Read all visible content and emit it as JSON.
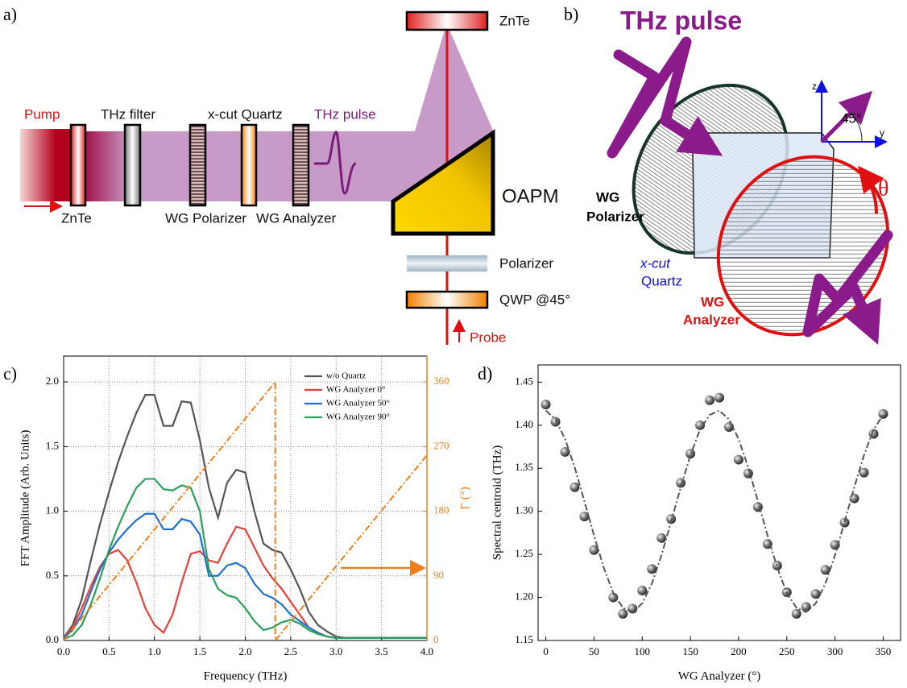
{
  "panel_labels": [
    "a)",
    "b)",
    "c)",
    "d)"
  ],
  "diagram_a": {
    "pump": "Pump",
    "thz_filter": "THz filter",
    "x_cut_quartz": "x-cut Quartz",
    "thz_pulse": "THz pulse",
    "znte_pump": "ZnTe",
    "wg_polarizer": "WG Polarizer",
    "wg_analyzer": "WG Analyzer",
    "znte_top": "ZnTe",
    "oapm": "OAPM",
    "polarizer": "Polarizer",
    "qwp": "QWP @45°",
    "probe": "Probe"
  },
  "diagram_b": {
    "title": "THz pulse",
    "wg_polarizer_1": "WG",
    "wg_polarizer_2": "Polarizer",
    "quartz_1": "x-cut",
    "quartz_2": "Quartz",
    "wg_analyzer_1": "WG",
    "wg_analyzer_2": "Analyzer",
    "theta": "θ",
    "angle": "45°",
    "z": "z",
    "y": "y"
  },
  "chart_data": [
    {
      "type": "line",
      "xlabel": "Frequency (THz)",
      "ylabel": "FFT Amplitude (Arb. Units)",
      "y2label": "Γ (°)",
      "xlim": [
        0,
        4
      ],
      "ylim": [
        0,
        2.2
      ],
      "y2lim": [
        0,
        396
      ],
      "grid": true,
      "legend": "upper right",
      "xticks": [
        {
          "value": 0,
          "label": "0.0"
        },
        0.5,
        {
          "value": 1,
          "label": "1.0"
        },
        1.5,
        {
          "value": 2,
          "label": "2.0"
        },
        2.5,
        {
          "value": 3,
          "label": "3.0"
        },
        3.5,
        {
          "value": 4,
          "label": "4.0"
        }
      ],
      "yticks": [
        {
          "value": 0,
          "label": "0.0"
        },
        0.5,
        {
          "value": 1,
          "label": "1.0"
        },
        1.5,
        {
          "value": 2,
          "label": "2.0"
        }
      ],
      "y2ticks": [
        0,
        90,
        180,
        270,
        360
      ],
      "y2color": "#f07f1b",
      "x": [
        0,
        0.1,
        0.2,
        0.3,
        0.4,
        0.5,
        0.6,
        0.7,
        0.8,
        0.9,
        1.0,
        1.1,
        1.2,
        1.3,
        1.4,
        1.5,
        1.6,
        1.7,
        1.8,
        1.9,
        2.0,
        2.1,
        2.2,
        2.3,
        2.4,
        2.5,
        2.6,
        2.7,
        2.8,
        2.9,
        3.0,
        3.1,
        3.2,
        3.3,
        3.4,
        3.5,
        3.6,
        3.7,
        3.8,
        3.9,
        4.0
      ],
      "series": [
        {
          "name": "w/o Quartz",
          "color": "#555555",
          "values": [
            0.02,
            0.12,
            0.32,
            0.62,
            0.9,
            1.15,
            1.38,
            1.58,
            1.76,
            1.9,
            1.9,
            1.66,
            1.66,
            1.85,
            1.84,
            1.55,
            1.18,
            0.95,
            1.22,
            1.32,
            1.3,
            1.0,
            0.75,
            0.7,
            0.68,
            0.55,
            0.4,
            0.22,
            0.12,
            0.07,
            0.03,
            0.02,
            0.02,
            0.02,
            0.02,
            0.02,
            0.02,
            0.02,
            0.02,
            0.02,
            0.02
          ]
        },
        {
          "name": "WG Analyzer 0°",
          "color": "#e8413c",
          "values": [
            0.02,
            0.1,
            0.25,
            0.42,
            0.57,
            0.67,
            0.7,
            0.62,
            0.45,
            0.25,
            0.12,
            0.06,
            0.2,
            0.45,
            0.67,
            0.69,
            0.62,
            0.6,
            0.75,
            0.88,
            0.86,
            0.72,
            0.58,
            0.48,
            0.4,
            0.3,
            0.2,
            0.1,
            0.06,
            0.03,
            0.02,
            0.02,
            0.02,
            0.02,
            0.02,
            0.02,
            0.02,
            0.02,
            0.02,
            0.02,
            0.02
          ]
        },
        {
          "name": "WG Analyzer 50°",
          "color": "#1f6fd1",
          "values": [
            0.02,
            0.08,
            0.2,
            0.38,
            0.55,
            0.68,
            0.78,
            0.86,
            0.93,
            0.98,
            0.98,
            0.86,
            0.86,
            0.94,
            0.92,
            0.82,
            0.5,
            0.5,
            0.58,
            0.6,
            0.56,
            0.44,
            0.36,
            0.33,
            0.28,
            0.2,
            0.15,
            0.1,
            0.06,
            0.03,
            0.02,
            0.02,
            0.02,
            0.02,
            0.02,
            0.02,
            0.02,
            0.02,
            0.02,
            0.02,
            0.02
          ]
        },
        {
          "name": "WG Analyzer 90°",
          "color": "#2aa05a",
          "values": [
            0.01,
            0.04,
            0.12,
            0.28,
            0.48,
            0.7,
            0.88,
            1.04,
            1.18,
            1.25,
            1.25,
            1.17,
            1.16,
            1.2,
            1.18,
            1.0,
            0.55,
            0.4,
            0.35,
            0.33,
            0.25,
            0.15,
            0.08,
            0.1,
            0.14,
            0.16,
            0.13,
            0.08,
            0.05,
            0.03,
            0.02,
            0.02,
            0.02,
            0.02,
            0.02,
            0.02,
            0.02,
            0.02,
            0.02,
            0.02,
            0.02
          ]
        },
        {
          "color": "#f07f1b",
          "axis": "y2",
          "dash": true,
          "x": [
            0,
            2.33,
            2.33,
            4
          ],
          "values": [
            0,
            360,
            0,
            258
          ]
        }
      ]
    },
    {
      "type": "scatter",
      "xlabel": "WG Analyzer (°)",
      "ylabel": "Spectral centroid (THz)",
      "xlim": [
        -8,
        368
      ],
      "ylim": [
        1.15,
        1.47
      ],
      "grid": false,
      "xticks": [
        0,
        50,
        100,
        150,
        200,
        250,
        300,
        350
      ],
      "yticks": [
        1.15,
        {
          "value": 1.2,
          "label": "1.20"
        },
        1.25,
        {
          "value": 1.3,
          "label": "1.30"
        },
        1.35,
        {
          "value": 1.4,
          "label": "1.40"
        },
        1.45
      ],
      "series": [
        {
          "type": "scatter",
          "color": "#555555",
          "x": [
            0,
            10,
            20,
            30,
            40,
            50,
            70,
            80,
            90,
            100,
            110,
            120,
            130,
            140,
            150,
            160,
            170,
            180,
            190,
            200,
            210,
            220,
            230,
            240,
            250,
            260,
            270,
            280,
            290,
            300,
            310,
            320,
            330,
            340,
            350
          ],
          "values": [
            1.424,
            1.404,
            1.369,
            1.328,
            1.294,
            1.255,
            1.2,
            1.181,
            1.187,
            1.208,
            1.233,
            1.269,
            1.291,
            1.333,
            1.367,
            1.4,
            1.429,
            1.432,
            1.398,
            1.36,
            1.344,
            1.305,
            1.262,
            1.237,
            1.206,
            1.181,
            1.189,
            1.204,
            1.232,
            1.261,
            1.287,
            1.315,
            1.345,
            1.39,
            1.413
          ]
        },
        {
          "type": "line",
          "color": "#555555",
          "dash": true,
          "x": [
            0,
            10,
            20,
            30,
            40,
            50,
            60,
            70,
            80,
            90,
            100,
            110,
            120,
            130,
            140,
            150,
            160,
            170,
            180,
            190,
            200,
            210,
            220,
            230,
            240,
            250,
            260,
            270,
            280,
            290,
            300,
            310,
            320,
            330,
            340,
            350
          ],
          "values": [
            1.417,
            1.407,
            1.384,
            1.351,
            1.312,
            1.272,
            1.235,
            1.205,
            1.188,
            1.183,
            1.193,
            1.216,
            1.249,
            1.288,
            1.328,
            1.365,
            1.395,
            1.412,
            1.417,
            1.407,
            1.384,
            1.351,
            1.312,
            1.272,
            1.235,
            1.205,
            1.188,
            1.183,
            1.193,
            1.216,
            1.249,
            1.288,
            1.328,
            1.365,
            1.395,
            1.412
          ]
        }
      ]
    }
  ]
}
